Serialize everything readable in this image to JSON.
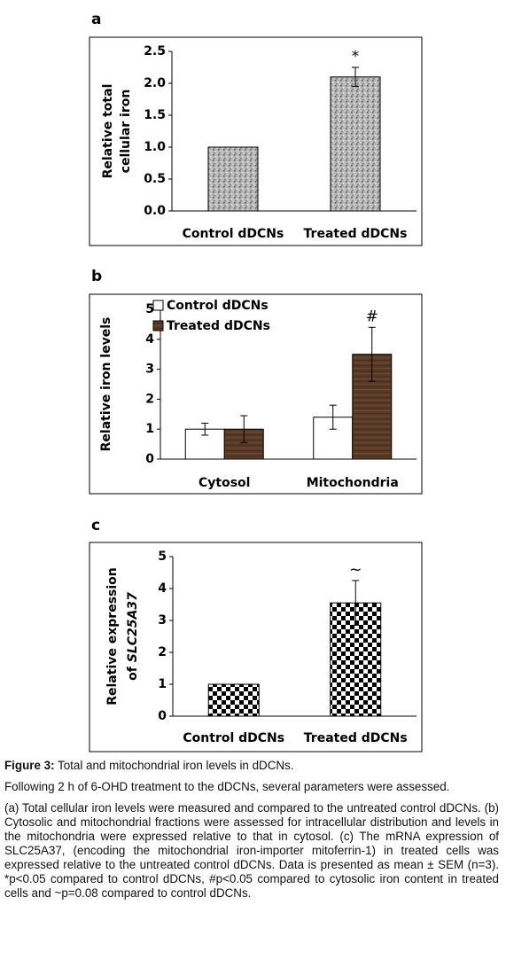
{
  "chart_data": [
    {
      "type": "bar",
      "panel": "a",
      "ylabel": [
        "Relative total",
        "cellular iron"
      ],
      "categories": [
        "Control dDCNs",
        "Treated dDCNs"
      ],
      "values": [
        1.0,
        2.1
      ],
      "errors": [
        null,
        0.15
      ],
      "color": "#9a9a9a",
      "fill_pattern": "speckle",
      "annotations": [
        "*"
      ],
      "ylim": [
        0,
        2.5
      ],
      "yticks": [
        {
          "value": 0,
          "label": "0.0"
        },
        0.5,
        {
          "value": 1,
          "label": "1.0"
        },
        1.5,
        {
          "value": 2,
          "label": "2.0"
        },
        2.5
      ]
    },
    {
      "type": "grouped_bar",
      "panel": "b",
      "ylabel": [
        "Relative iron levels"
      ],
      "categories": [
        "Cytosol",
        "Mitochondria"
      ],
      "series": [
        {
          "name": "Control dDCNs",
          "color": "#ffffff",
          "fill_pattern": "none",
          "values": [
            1.0,
            1.4
          ],
          "errors": [
            0.2,
            0.4
          ]
        },
        {
          "name": "Treated dDCNs",
          "color": "#5a3a26",
          "fill_pattern": "wood",
          "values": [
            1.0,
            3.5
          ],
          "errors": [
            0.45,
            0.9
          ]
        }
      ],
      "annotations": [
        "#"
      ],
      "legend": "upper left",
      "ylim": [
        0,
        5
      ],
      "yticks": [
        0,
        1,
        2,
        3,
        4,
        5
      ]
    },
    {
      "type": "bar",
      "panel": "c",
      "ylabel": [
        "Relative expression",
        "of",
        "SLC25A37"
      ],
      "categories": [
        "Control dDCNs",
        "Treated dDCNs"
      ],
      "values": [
        1.0,
        3.55
      ],
      "errors": [
        null,
        0.7
      ],
      "color": "#000000",
      "fill_pattern": "checker",
      "annotations": [
        "~"
      ],
      "ylim": [
        0,
        5
      ],
      "yticks": [
        0,
        1,
        2,
        3,
        4,
        5
      ]
    }
  ],
  "caption": {
    "label": "Figure 3:",
    "title": "Total and mitochondrial iron levels in dDCNs.",
    "paragraphs": [
      "Following 2 h of 6-OHD treatment to the dDCNs, several parameters were assessed.",
      "(a) Total cellular iron levels were measured and compared to the untreated control dDCNs. (b) Cytosolic and mitochondrial fractions were assessed for intracellular distribution and levels in the mitochondria were expressed relative to that in cytosol. (c) The mRNA expression of SLC25A37, (encoding the mitochondrial iron-importer mitoferrin-1) in treated cells was expressed relative to the untreated control dDCNs. Data is presented as mean ± SEM (n=3). *p<0.05 compared to control dDCNs, #p<0.05 compared to cytosolic iron content in treated cells and ~p=0.08 compared to control dDCNs."
    ]
  }
}
